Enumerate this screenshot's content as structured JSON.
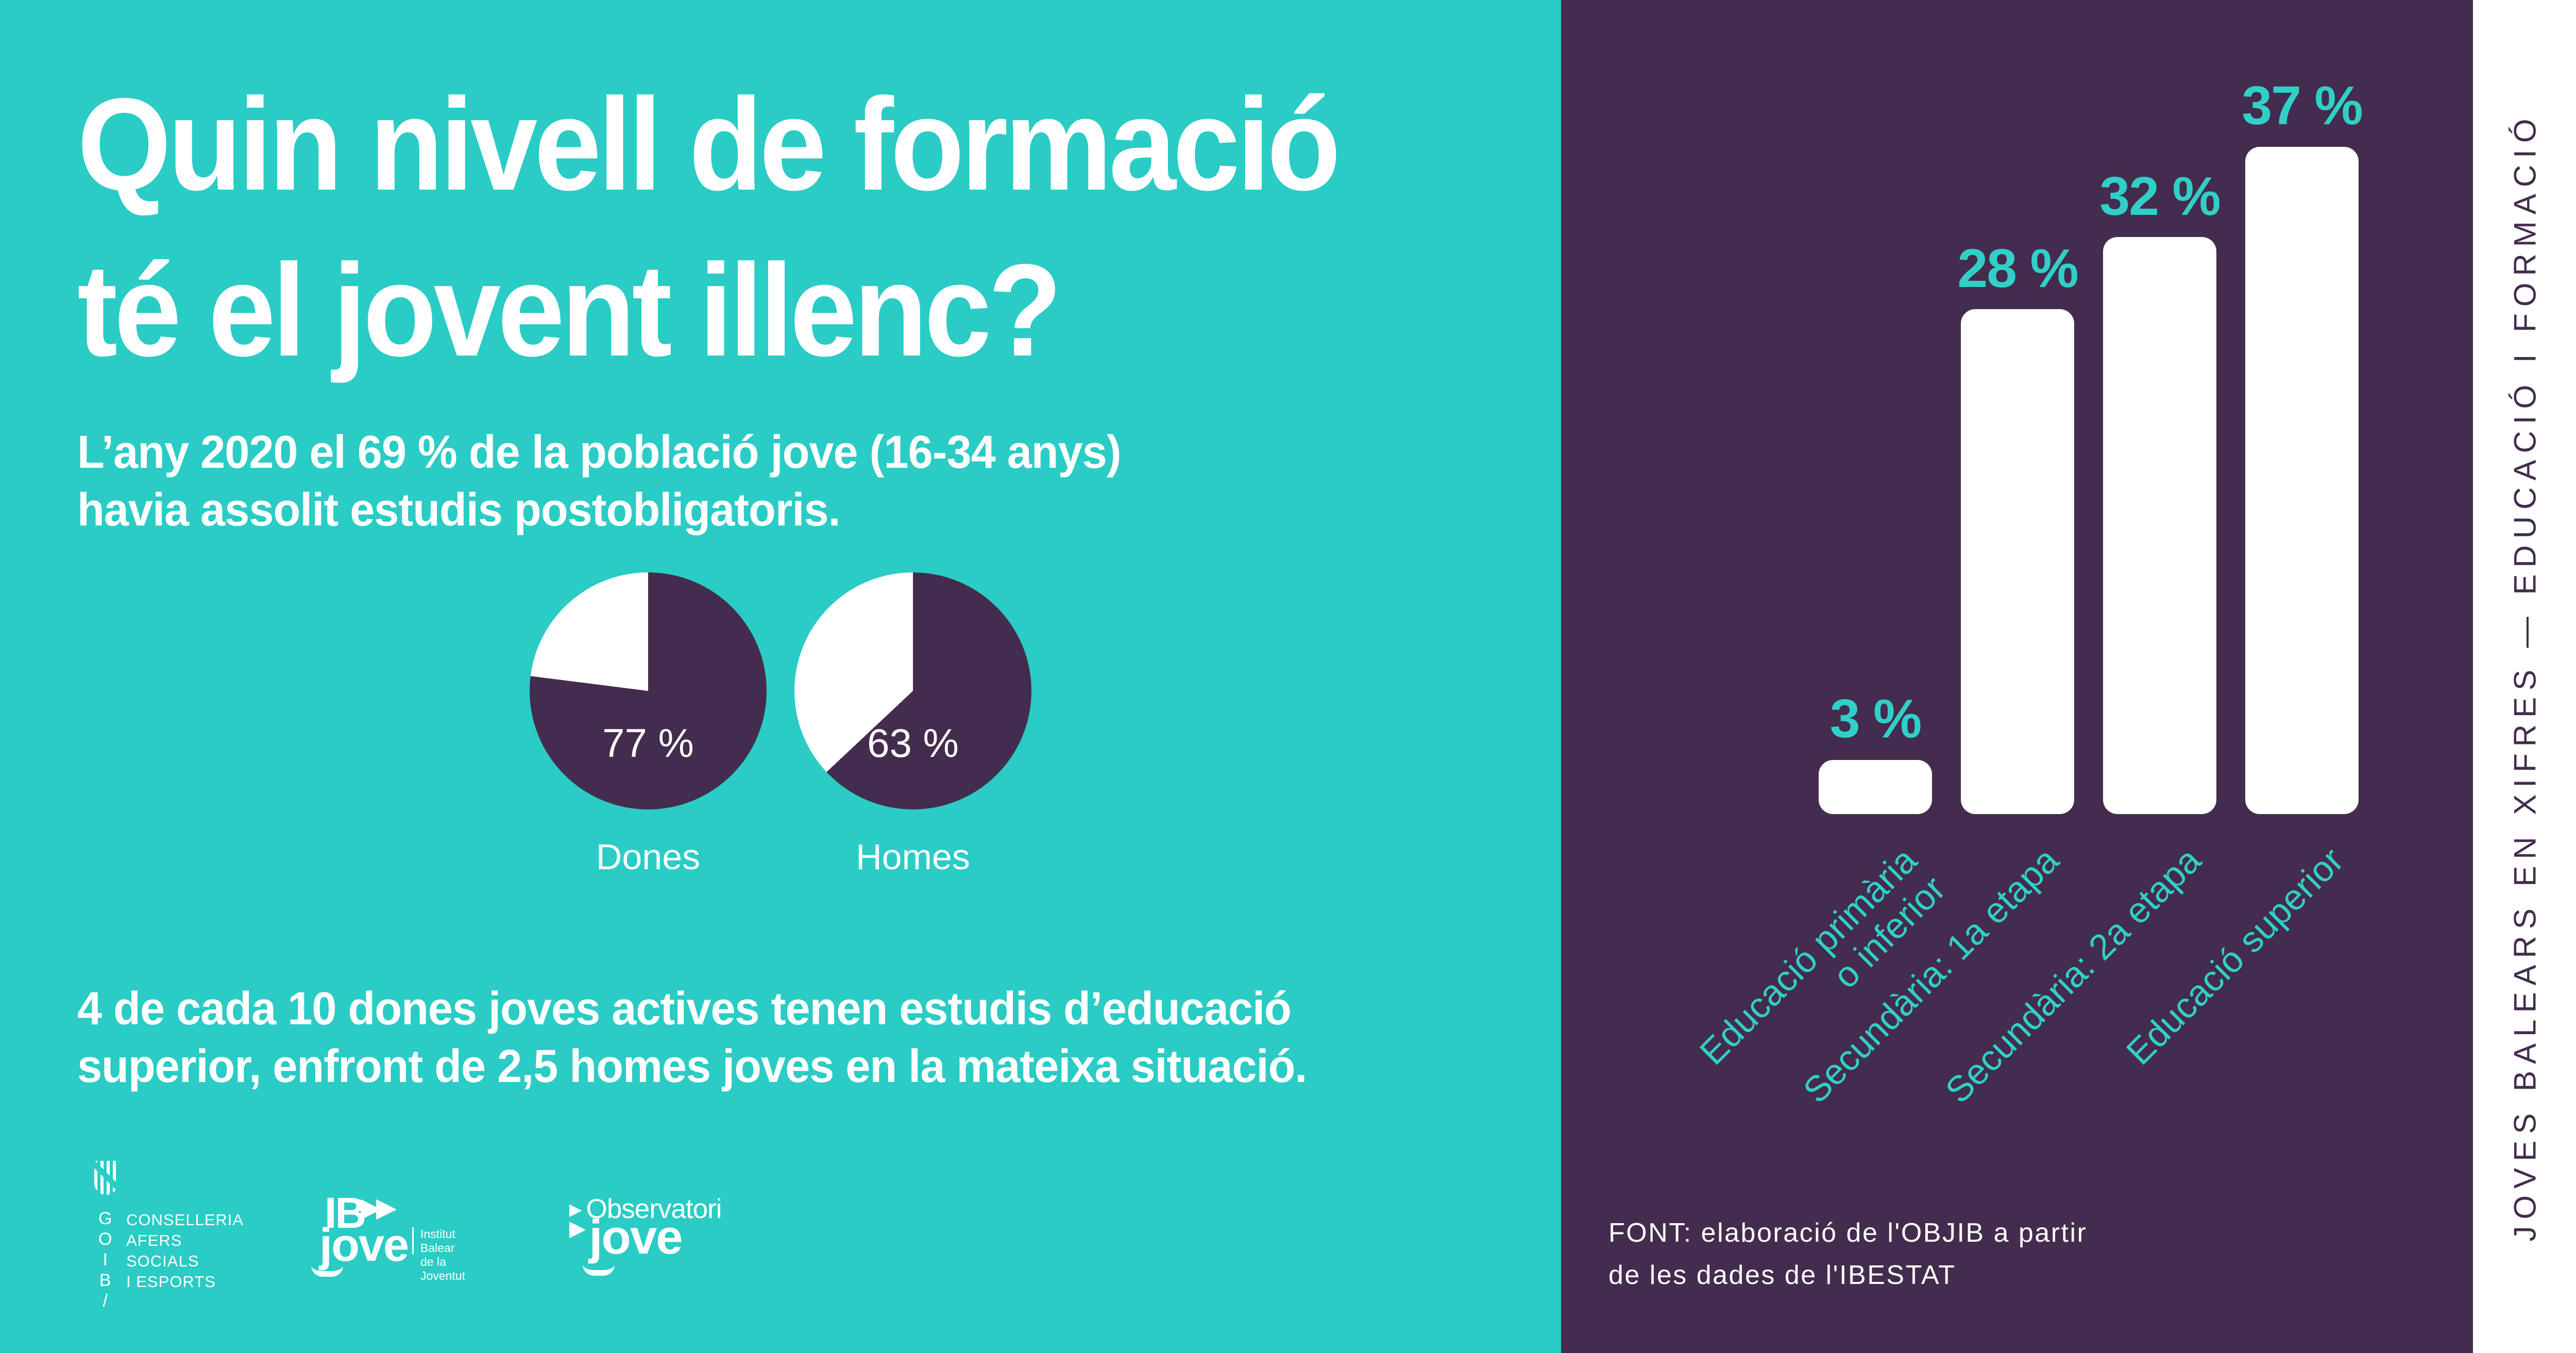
{
  "colors": {
    "teal_bg": "#2accc5",
    "purple": "#432c4d",
    "accent_teal": "#30d0c8",
    "white": "#ffffff"
  },
  "left": {
    "title": "Quin nivell de formació\nté el jovent illenc?",
    "subtitle": "L’any 2020 el 69 % de la població jove (16-34 anys)\nhavia assolit estudis postobligatoris.",
    "body": "4 de cada 10 dones joves actives tenen estudis d’educació\nsuperior, enfront de 2,5 homes joves en la mateixa situació."
  },
  "chart_data": [
    {
      "type": "pie",
      "label": "Dones",
      "value": 77,
      "value_label": "77 %",
      "filled_color": "#432c4d",
      "empty_color": "#ffffff",
      "start": "12 o'clock, clockwise"
    },
    {
      "type": "pie",
      "label": "Homes",
      "value": 63,
      "value_label": "63 %",
      "filled_color": "#432c4d",
      "empty_color": "#ffffff",
      "start": "12 o'clock, clockwise"
    },
    {
      "type": "bar",
      "categories": [
        "Educació primària\no inferior",
        "Secundària: 1a etapa",
        "Secundària: 2a etapa",
        "Educació superior"
      ],
      "values": [
        3,
        28,
        32,
        37
      ],
      "value_labels": [
        "3 %",
        "28 %",
        "32 %",
        "37 %"
      ],
      "ylim": [
        0,
        40
      ],
      "bar_color": "#ffffff",
      "label_color": "#30d0c8",
      "grid": false,
      "legend": false
    }
  ],
  "logos": {
    "goib": {
      "letters": "G\nO\nI\nB\n/",
      "lines": "CONSELLERIA\nAFERS SOCIALS\nI ESPORTS"
    },
    "ibjove": {
      "mark": "IB",
      "arrows": "▶▶",
      "word": "jove",
      "sub": "Institut Balear\nde la Joventut"
    },
    "observatori": {
      "triangle": "▶",
      "line1": "Observatori",
      "line2": "jove"
    }
  },
  "footer_source": "FONT: elaboració de l'OBJIB a partir\nde les dades de l'IBESTAT",
  "side_strip": "JOVES BALEARS EN XIFRES — EDUCACIÓ I FORMACIÓ"
}
